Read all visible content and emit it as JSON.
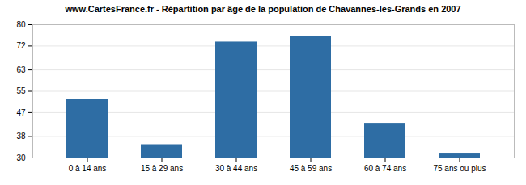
{
  "chart_data": {
    "type": "bar",
    "title": "www.CartesFrance.fr - Répartition par âge de la population de Chavannes-les-Grands en 2007",
    "categories": [
      "0 à 14 ans",
      "15 à 29 ans",
      "30 à 44 ans",
      "45 à 59 ans",
      "60 à 74 ans",
      "75 ans ou plus"
    ],
    "values": [
      52.0,
      35.0,
      73.5,
      75.5,
      43.0,
      31.5
    ],
    "color": "#2E6DA4",
    "ylim": [
      30,
      80
    ],
    "yticks": [
      30,
      38,
      47,
      55,
      63,
      72,
      80
    ],
    "grid": true
  }
}
